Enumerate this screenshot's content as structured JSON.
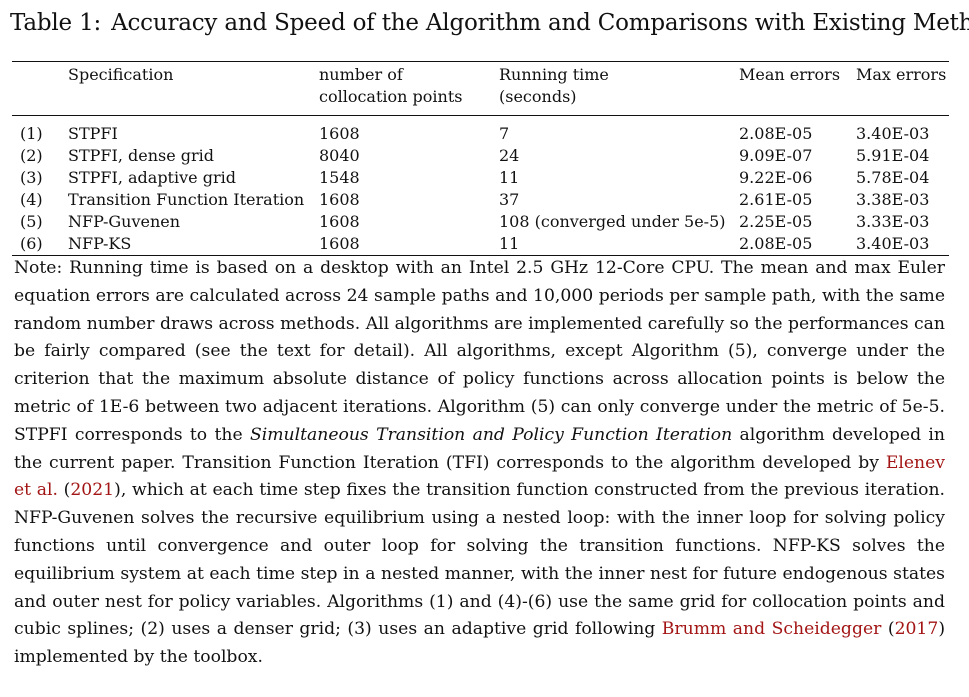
{
  "caption": {
    "label": "Table 1:",
    "title": "Accuracy and Speed of the Algorithm and Comparisons with Existing Methods"
  },
  "table": {
    "headers": {
      "spec": "Specification",
      "points_line1": "number of",
      "points_line2": "collocation points",
      "time_line1": "Running time",
      "time_line2": "(seconds)",
      "mean": "Mean errors",
      "max": "Max errors"
    },
    "rows": [
      {
        "num": "(1)",
        "spec": "STPFI",
        "points": "1608",
        "time": "7",
        "mean": "2.08E-05",
        "max": "3.40E-03"
      },
      {
        "num": "(2)",
        "spec": "STPFI, dense grid",
        "points": "8040",
        "time": "24",
        "mean": "9.09E-07",
        "max": "5.91E-04"
      },
      {
        "num": "(3)",
        "spec": "STPFI, adaptive grid",
        "points": "1548",
        "time": "11",
        "mean": "9.22E-06",
        "max": "5.78E-04"
      },
      {
        "num": "(4)",
        "spec": "Transition Function Iteration",
        "points": "1608",
        "time": "37",
        "mean": "2.61E-05",
        "max": "3.38E-03"
      },
      {
        "num": "(5)",
        "spec": "NFP-Guvenen",
        "points": "1608",
        "time": "108 (converged under 5e-5)",
        "mean": "2.25E-05",
        "max": "3.33E-03"
      },
      {
        "num": "(6)",
        "spec": "NFP-KS",
        "points": "1608",
        "time": "11",
        "mean": "2.08E-05",
        "max": "3.40E-03"
      }
    ]
  },
  "note": {
    "part1": "Note: Running time is based on a desktop with an Intel 2.5 GHz 12-Core CPU. The mean and max Euler equation errors are calculated across 24 sample paths and 10,000 periods per sample path, with the same random number draws across methods. All algorithms are implemented carefully so the performances can be fairly compared (see the text for detail). All algorithms, except Algorithm (5), converge under the criterion that the maximum absolute distance of policy functions across allocation points is below the metric of 1E-6 between two adjacent iterations. Algorithm (5) can only converge under the metric of 5e-5. STPFI corresponds to the ",
    "italic": "Simultaneous Transition and Policy Function Iteration",
    "part2": " algorithm developed in the current paper. Transition Function Iteration (TFI) corresponds to the algorithm developed by ",
    "cite1_author": "Elenev et al.",
    "cite1_open": " (",
    "cite1_year": "2021",
    "part3": "), which at each time step fixes the transition function constructed from the previous iteration. NFP-Guvenen solves the recursive equilibrium using a nested loop: with the inner loop for solving policy functions until convergence and outer loop for solving the transition functions. NFP-KS solves the equilibrium system at each time step in a nested manner, with the inner nest for future endogenous states and outer nest for policy variables. Algorithms (1) and (4)-(6) use the same grid for collocation points and cubic splines; (2) uses a denser grid; (3) uses an adaptive grid following ",
    "cite2_author": "Brumm and Scheidegger",
    "cite2_open": " (",
    "cite2_year": "2017",
    "part4": ") implemented by the toolbox."
  }
}
